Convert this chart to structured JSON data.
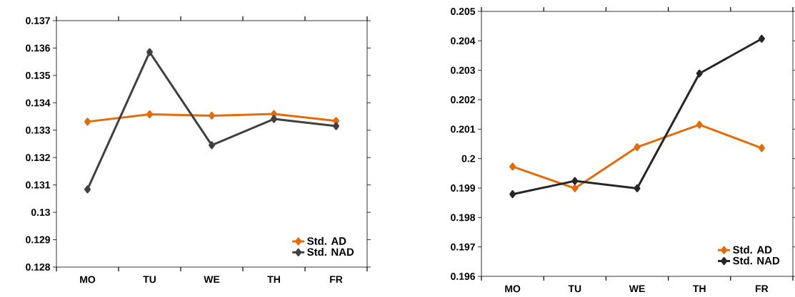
{
  "chart_data": [
    {
      "type": "line",
      "categories": [
        "MO",
        "TU",
        "WE",
        "TH",
        "FR"
      ],
      "ylim": [
        0.128,
        0.137
      ],
      "yticks": [
        0.128,
        0.129,
        0.13,
        0.131,
        0.132,
        0.133,
        0.134,
        0.135,
        0.136,
        0.137
      ],
      "grid": false,
      "legend": "bottom right",
      "marker": "diamond",
      "line_style": "solid",
      "series": [
        {
          "name": "Std. AD",
          "color": "#e36c0a",
          "values": [
            0.13331,
            0.13358,
            0.13353,
            0.13359,
            0.13334
          ]
        },
        {
          "name": "Std. NAD",
          "color": "#404040",
          "values": [
            0.13084,
            0.13585,
            0.13245,
            0.13341,
            0.13315
          ]
        }
      ]
    },
    {
      "type": "line",
      "categories": [
        "MO",
        "TU",
        "WE",
        "TH",
        "FR"
      ],
      "ylim": [
        0.196,
        0.205
      ],
      "yticks": [
        0.196,
        0.197,
        0.198,
        0.199,
        0.2,
        0.201,
        0.202,
        0.203,
        0.204,
        0.205
      ],
      "grid": false,
      "legend": "bottom right",
      "marker": "diamond",
      "line_style": "solid",
      "series": [
        {
          "name": "Std. AD",
          "color": "#e36c0a",
          "values": [
            0.19973,
            0.19899,
            0.20039,
            0.20115,
            0.20036
          ]
        },
        {
          "name": "Std. NAD",
          "color": "#262626",
          "values": [
            0.19879,
            0.19924,
            0.19899,
            0.20289,
            0.20407
          ]
        }
      ]
    }
  ]
}
